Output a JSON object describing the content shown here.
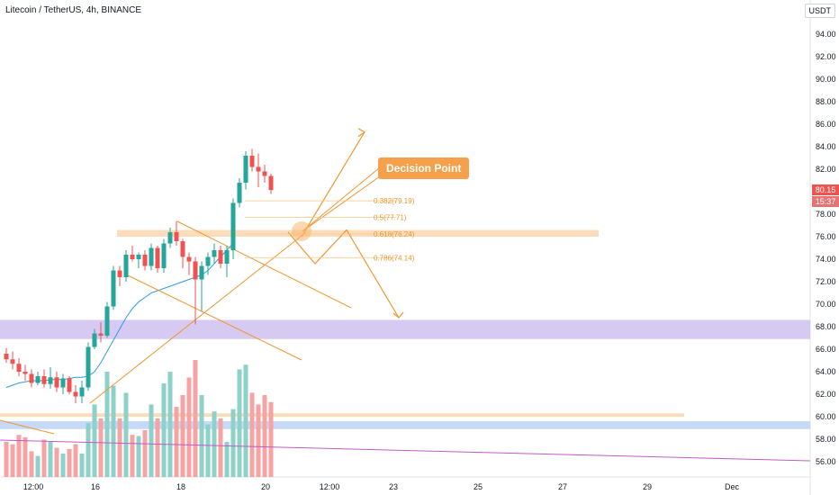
{
  "header": {
    "title": "Litecoin / TetherUS, 4h, BINANCE",
    "currency": "USDT"
  },
  "price_badge": {
    "last_price": "80.15",
    "countdown": "15:37"
  },
  "annotations": {
    "decision_point": "Decision Point",
    "fib_levels": [
      "0.382(79.19)",
      "0.5(77.71)",
      "0.618(76.24)",
      "0.786(74.14)"
    ]
  },
  "colors": {
    "up": "#26a69a",
    "down": "#ef5350",
    "vol_up": "#8ed1c9",
    "vol_down": "#f5a3a3",
    "accent_orange": "#f0952f",
    "zone_purple": "#c8b8ee",
    "zone_blue": "#bcd4f7",
    "zone_orange": "#fbd2a4",
    "ma_line": "#2f9be8",
    "trend_purple": "#c25bc6"
  },
  "chart_data": {
    "type": "candlestick",
    "y_axis_ticks": [
      "94.00",
      "92.00",
      "90.00",
      "88.00",
      "86.00",
      "84.00",
      "82.00",
      "80.00",
      "78.00",
      "76.00",
      "74.00",
      "72.00",
      "70.00",
      "68.00",
      "66.00",
      "64.00",
      "62.00",
      "60.00",
      "58.00",
      "56.00"
    ],
    "x_axis_ticks": [
      "12:00",
      "16",
      "18",
      "20",
      "12:00",
      "23",
      "25",
      "27",
      "29",
      "Dec"
    ],
    "ylim": [
      55,
      97
    ],
    "candles": [
      [
        65.6,
        66.1,
        64.8,
        65.1
      ],
      [
        65.1,
        65.8,
        64.2,
        64.7
      ],
      [
        64.7,
        65.2,
        63.6,
        64.0
      ],
      [
        64.0,
        64.6,
        63.2,
        63.8
      ],
      [
        63.8,
        64.2,
        62.6,
        63.0
      ],
      [
        63.0,
        64.0,
        62.8,
        63.6
      ],
      [
        63.6,
        64.2,
        62.6,
        62.9
      ],
      [
        62.9,
        64.4,
        62.5,
        63.5
      ],
      [
        63.5,
        64.0,
        62.2,
        62.6
      ],
      [
        62.6,
        63.8,
        62.0,
        63.4
      ],
      [
        63.4,
        63.6,
        62.0,
        62.2
      ],
      [
        62.2,
        62.8,
        61.2,
        61.8
      ],
      [
        61.8,
        63.2,
        61.2,
        62.6
      ],
      [
        62.6,
        66.6,
        62.3,
        66.2
      ],
      [
        66.2,
        67.8,
        66.0,
        67.4
      ],
      [
        67.4,
        68.4,
        66.6,
        67.2
      ],
      [
        67.2,
        70.2,
        67.0,
        69.8
      ],
      [
        69.8,
        73.4,
        69.5,
        73.0
      ],
      [
        73.0,
        73.4,
        71.6,
        72.4
      ],
      [
        72.4,
        74.8,
        72.0,
        74.4
      ],
      [
        74.4,
        75.2,
        73.8,
        74.0
      ],
      [
        74.0,
        74.6,
        73.2,
        74.4
      ],
      [
        74.4,
        74.8,
        73.0,
        73.4
      ],
      [
        73.4,
        75.4,
        73.0,
        75.0
      ],
      [
        75.0,
        75.2,
        72.8,
        73.2
      ],
      [
        73.2,
        75.8,
        72.8,
        75.4
      ],
      [
        75.4,
        76.8,
        75.0,
        76.4
      ],
      [
        76.4,
        77.4,
        75.2,
        75.6
      ],
      [
        75.6,
        75.8,
        73.2,
        74.2
      ],
      [
        74.2,
        74.6,
        72.6,
        73.8
      ],
      [
        73.8,
        74.2,
        68.2,
        72.2
      ],
      [
        72.2,
        73.8,
        69.4,
        73.4
      ],
      [
        73.4,
        74.6,
        72.6,
        74.2
      ],
      [
        74.2,
        75.4,
        73.6,
        74.8
      ],
      [
        74.8,
        75.2,
        73.2,
        73.6
      ],
      [
        73.6,
        75.2,
        72.4,
        74.8
      ],
      [
        74.8,
        79.4,
        74.0,
        79.0
      ],
      [
        79.0,
        81.2,
        78.6,
        80.8
      ],
      [
        80.8,
        83.6,
        80.2,
        83.2
      ],
      [
        83.2,
        83.8,
        81.8,
        82.2
      ],
      [
        82.2,
        83.4,
        80.4,
        81.8
      ],
      [
        81.8,
        82.4,
        80.8,
        81.4
      ],
      [
        81.4,
        81.6,
        79.8,
        80.15
      ]
    ],
    "volume_relative": [
      0.3,
      0.28,
      0.36,
      0.34,
      0.22,
      0.18,
      0.32,
      0.3,
      0.25,
      0.2,
      0.24,
      0.28,
      0.2,
      0.46,
      0.62,
      0.5,
      0.9,
      0.78,
      0.5,
      0.72,
      0.36,
      0.35,
      0.4,
      0.62,
      0.5,
      0.8,
      0.9,
      0.6,
      0.7,
      0.85,
      1.0,
      0.7,
      0.45,
      0.56,
      0.5,
      0.3,
      0.58,
      0.92,
      0.96,
      0.72,
      0.62,
      0.7,
      0.64
    ],
    "ma_values": [
      62.6,
      62.8,
      63.0,
      63.1,
      63.2,
      63.2,
      63.2,
      63.3,
      63.3,
      63.3,
      63.4,
      63.5,
      63.5,
      63.6,
      64.0,
      64.8,
      65.8,
      66.8,
      67.8,
      68.8,
      69.6,
      70.2,
      70.6,
      71.0,
      71.2,
      71.4,
      71.6,
      71.8,
      72.0,
      72.2,
      72.4,
      72.6,
      73.0,
      73.6,
      74.2,
      74.8,
      75.4
    ],
    "fib_values": [
      79.19,
      77.71,
      76.24,
      74.14
    ],
    "zones": [
      {
        "name": "resistance-band",
        "low": 76.0,
        "high": 76.6
      },
      {
        "name": "support-band",
        "low": 66.9,
        "high": 68.6
      },
      {
        "name": "low-band-blue",
        "low": 58.9,
        "high": 59.6
      },
      {
        "name": "low-band-orange",
        "low": 60.0,
        "high": 60.3
      }
    ],
    "scenario_up_path_prices": [
      76.0,
      85.3
    ],
    "scenario_down_path_prices": [
      76.4,
      73.6,
      76.6,
      68.8
    ]
  }
}
